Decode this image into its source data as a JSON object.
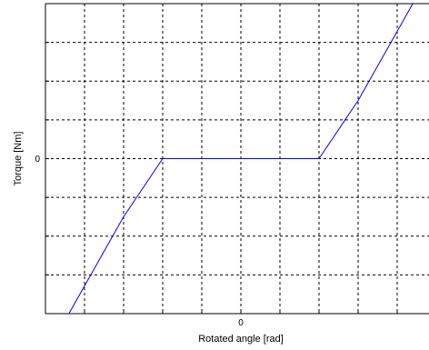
{
  "chart_data": {
    "type": "line",
    "title": "",
    "xlabel": "Rotated angle [rad]",
    "ylabel": "Torque [Nm]",
    "xlim": [
      -5,
      5
    ],
    "ylim": [
      -4,
      4
    ],
    "x_ticks": [
      -4,
      -3,
      -2,
      -1,
      0,
      1,
      2,
      3,
      4
    ],
    "y_ticks": [
      -3,
      -2,
      -1,
      0,
      1,
      2,
      3
    ],
    "x_tick_labels": [
      {
        "value": 0,
        "label": "0"
      }
    ],
    "y_tick_labels": [
      {
        "value": 0,
        "label": "0"
      }
    ],
    "grid": true,
    "line_color": "#0000ff",
    "series": [
      {
        "x": [
          -4.4,
          -3.0,
          -2.0,
          2.0,
          3.0,
          4.4
        ],
        "y": [
          -4.0,
          -1.5,
          0.0,
          0.0,
          1.5,
          4.0
        ]
      }
    ]
  }
}
